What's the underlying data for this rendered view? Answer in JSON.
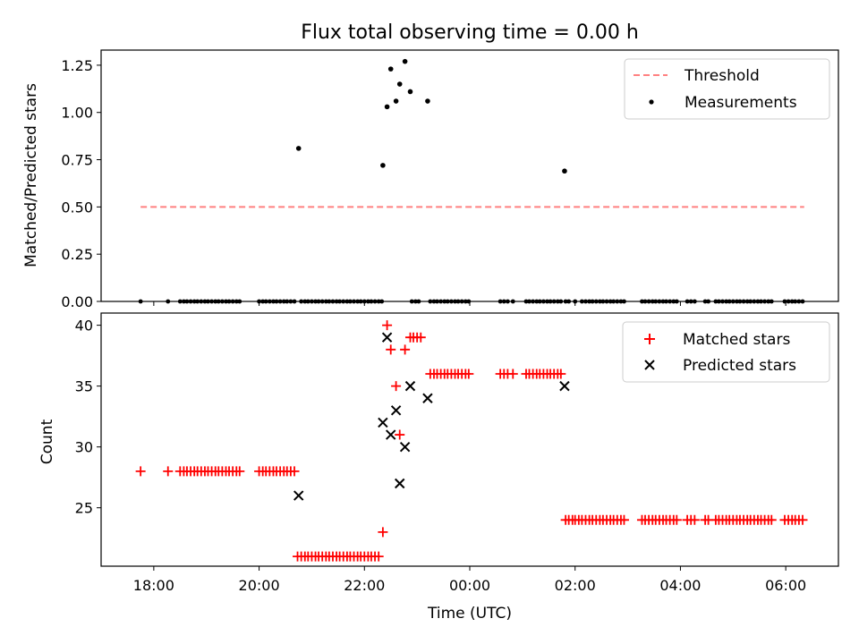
{
  "chart_data": [
    {
      "type": "scatter",
      "title": "Flux total observing time = 0.00 h",
      "xlabel": "",
      "ylabel": "Matched/Predicted stars",
      "xlim": [
        17.0,
        31.0
      ],
      "ylim": [
        0.0,
        1.33
      ],
      "yticks": [
        0.0,
        0.25,
        0.5,
        0.75,
        1.0,
        1.25
      ],
      "ytick_labels": [
        "0.00",
        "0.25",
        "0.50",
        "0.75",
        "1.00",
        "1.25"
      ],
      "legend": {
        "location": "top-right",
        "entries": [
          "Threshold",
          "Measurements"
        ]
      },
      "threshold": {
        "name": "Threshold",
        "value": 0.5,
        "x": [
          17.75,
          30.35
        ],
        "color": "#ff8080"
      },
      "series": [
        {
          "name": "Measurements",
          "color": "#000000",
          "zero_x": [
            17.75,
            18.27,
            18.5,
            18.57,
            18.63,
            18.7,
            18.77,
            18.83,
            18.9,
            18.97,
            19.03,
            19.1,
            19.17,
            19.23,
            19.3,
            19.37,
            19.43,
            19.5,
            19.57,
            19.63,
            20.0,
            20.07,
            20.13,
            20.2,
            20.27,
            20.33,
            20.4,
            20.47,
            20.53,
            20.6,
            20.67,
            20.8,
            20.87,
            20.93,
            21.0,
            21.07,
            21.13,
            21.2,
            21.27,
            21.33,
            21.4,
            21.47,
            21.53,
            21.6,
            21.67,
            21.73,
            21.8,
            21.87,
            21.93,
            22.0,
            22.07,
            22.13,
            22.2,
            22.27,
            22.33,
            22.9,
            22.97,
            23.03,
            23.25,
            23.32,
            23.38,
            23.45,
            23.52,
            23.58,
            23.65,
            23.72,
            23.78,
            23.85,
            23.92,
            23.98,
            24.58,
            24.65,
            24.72,
            24.82,
            25.07,
            25.13,
            25.2,
            25.27,
            25.33,
            25.4,
            25.47,
            25.53,
            25.6,
            25.67,
            25.73,
            25.82,
            25.88,
            26.0,
            26.13,
            26.2,
            26.27,
            26.33,
            26.4,
            26.47,
            26.53,
            26.6,
            26.67,
            26.73,
            26.8,
            26.87,
            26.93,
            27.27,
            27.33,
            27.4,
            27.47,
            27.53,
            27.6,
            27.67,
            27.73,
            27.8,
            27.87,
            27.93,
            28.13,
            28.2,
            28.27,
            28.47,
            28.53,
            28.67,
            28.73,
            28.8,
            28.87,
            28.93,
            29.0,
            29.07,
            29.13,
            29.2,
            29.27,
            29.33,
            29.4,
            29.47,
            29.53,
            29.6,
            29.67,
            29.73,
            29.98,
            30.05,
            30.12,
            30.18,
            30.25,
            30.32
          ],
          "points": [
            {
              "x": 20.75,
              "y": 0.81
            },
            {
              "x": 22.35,
              "y": 0.72
            },
            {
              "x": 22.43,
              "y": 1.03
            },
            {
              "x": 22.5,
              "y": 1.23
            },
            {
              "x": 22.6,
              "y": 1.06
            },
            {
              "x": 22.67,
              "y": 1.15
            },
            {
              "x": 22.77,
              "y": 1.27
            },
            {
              "x": 22.87,
              "y": 1.11
            },
            {
              "x": 23.2,
              "y": 1.06
            },
            {
              "x": 25.8,
              "y": 0.69
            }
          ]
        }
      ]
    },
    {
      "type": "scatter",
      "title": "",
      "xlabel": "Time (UTC)",
      "ylabel": "Count",
      "xlim": [
        17.0,
        31.0
      ],
      "ylim": [
        20.2,
        41.0
      ],
      "yticks": [
        25,
        30,
        35,
        40
      ],
      "ytick_labels": [
        "25",
        "30",
        "35",
        "40"
      ],
      "xticks": [
        18,
        20,
        22,
        24,
        26,
        28,
        30
      ],
      "xtick_labels": [
        "18:00",
        "20:00",
        "22:00",
        "00:00",
        "02:00",
        "04:00",
        "06:00"
      ],
      "legend": {
        "location": "top-right",
        "entries": [
          "Matched stars",
          "Predicted stars"
        ]
      },
      "series": [
        {
          "name": "Matched stars",
          "marker": "plus",
          "color": "#ff0000",
          "groups": [
            {
              "y": 28,
              "x": [
                17.75,
                18.27,
                18.5,
                18.57,
                18.63,
                18.7,
                18.77,
                18.83,
                18.9,
                18.97,
                19.03,
                19.1,
                19.17,
                19.23,
                19.3,
                19.37,
                19.43,
                19.5,
                19.57,
                19.63,
                20.0,
                20.07,
                20.13,
                20.2,
                20.27,
                20.33,
                20.4,
                20.47,
                20.53,
                20.6,
                20.67
              ]
            },
            {
              "y": 21,
              "x": [
                20.73,
                20.8,
                20.87,
                20.93,
                21.0,
                21.07,
                21.13,
                21.2,
                21.27,
                21.33,
                21.4,
                21.47,
                21.53,
                21.6,
                21.67,
                21.73,
                21.8,
                21.87,
                21.93,
                22.0,
                22.07,
                22.13,
                22.2,
                22.27
              ]
            },
            {
              "y": 36,
              "x": [
                23.25,
                23.32,
                23.38,
                23.45,
                23.52,
                23.58,
                23.65,
                23.72,
                23.78,
                23.85,
                23.92,
                23.98,
                24.58,
                24.65,
                24.72,
                24.82,
                25.07,
                25.13,
                25.2,
                25.27,
                25.33,
                25.4,
                25.47,
                25.53,
                25.6,
                25.67,
                25.73
              ]
            },
            {
              "y": 24,
              "x": [
                25.82,
                25.88,
                25.95,
                26.0,
                26.07,
                26.13,
                26.2,
                26.27,
                26.33,
                26.4,
                26.47,
                26.53,
                26.6,
                26.67,
                26.73,
                26.8,
                26.87,
                26.93,
                27.27,
                27.33,
                27.4,
                27.47,
                27.53,
                27.6,
                27.67,
                27.73,
                27.8,
                27.87,
                27.93,
                28.13,
                28.2,
                28.27,
                28.47,
                28.53,
                28.67,
                28.73,
                28.8,
                28.87,
                28.93,
                29.0,
                29.07,
                29.13,
                29.2,
                29.27,
                29.33,
                29.4,
                29.47,
                29.53,
                29.6,
                29.67,
                29.73,
                29.98,
                30.05,
                30.12,
                30.18,
                30.25,
                30.32
              ]
            }
          ],
          "points": [
            {
              "x": 22.35,
              "y": 23
            },
            {
              "x": 22.43,
              "y": 40
            },
            {
              "x": 22.5,
              "y": 38
            },
            {
              "x": 22.6,
              "y": 35
            },
            {
              "x": 22.67,
              "y": 31
            },
            {
              "x": 22.77,
              "y": 38
            },
            {
              "x": 22.87,
              "y": 39
            },
            {
              "x": 22.93,
              "y": 39
            },
            {
              "x": 23.0,
              "y": 39
            },
            {
              "x": 23.07,
              "y": 39
            }
          ]
        },
        {
          "name": "Predicted stars",
          "marker": "x",
          "color": "#000000",
          "points": [
            {
              "x": 20.75,
              "y": 26
            },
            {
              "x": 22.35,
              "y": 32
            },
            {
              "x": 22.43,
              "y": 39
            },
            {
              "x": 22.5,
              "y": 31
            },
            {
              "x": 22.6,
              "y": 33
            },
            {
              "x": 22.67,
              "y": 27
            },
            {
              "x": 22.77,
              "y": 30
            },
            {
              "x": 22.87,
              "y": 35
            },
            {
              "x": 23.2,
              "y": 34
            },
            {
              "x": 25.8,
              "y": 35
            }
          ]
        }
      ]
    }
  ]
}
